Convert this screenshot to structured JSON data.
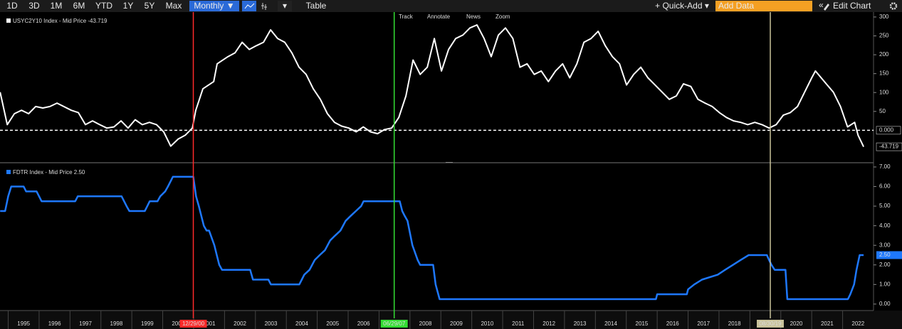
{
  "toolbar": {
    "ranges": [
      "1D",
      "3D",
      "1M",
      "6M",
      "YTD",
      "1Y",
      "5Y",
      "Max"
    ],
    "frequency": "Monthly ▼",
    "table": "Table",
    "quick_add": "+ Quick-Add ▾",
    "add_data": "Add Data",
    "collapse": "«",
    "edit_chart": "Edit Chart"
  },
  "panel_tools": [
    "Track",
    "Annotate",
    "News",
    "Zoom"
  ],
  "chart_data": [
    {
      "type": "line",
      "xlim": [
        1994.735,
        2023.0
      ],
      "ylim": [
        -84,
        313
      ],
      "yticks": [
        50,
        100,
        150,
        200,
        250,
        300
      ],
      "reference_line": {
        "value": 0,
        "label": "0.000"
      },
      "series": [
        {
          "name": "USYC2Y10 Index - Mid Price -43.719",
          "color": "#ffffff",
          "x": [
            1994.74,
            1994.97,
            1995.2,
            1995.43,
            1995.66,
            1995.89,
            1996.12,
            1996.35,
            1996.58,
            1997.04,
            1997.27,
            1997.5,
            1997.73,
            1997.96,
            1998.19,
            1998.42,
            1998.65,
            1998.88,
            1999.11,
            1999.34,
            1999.57,
            1999.8,
            2000.03,
            2000.26,
            2000.5,
            2000.73,
            2000.96,
            2001.07,
            2001.3,
            2001.65,
            2001.76,
            2002.11,
            2002.34,
            2002.57,
            2002.8,
            2003.03,
            2003.26,
            2003.49,
            2003.72,
            2003.95,
            2004.18,
            2004.41,
            2004.64,
            2004.87,
            2005.1,
            2005.33,
            2005.56,
            2005.79,
            2006.02,
            2006.26,
            2006.49,
            2006.72,
            2006.95,
            2007.18,
            2007.41,
            2007.64,
            2007.87,
            2008.1,
            2008.33,
            2008.56,
            2008.79,
            2009.02,
            2009.25,
            2009.48,
            2009.71,
            2009.94,
            2010.17,
            2010.4,
            2010.63,
            2010.86,
            2011.09,
            2011.33,
            2011.56,
            2011.79,
            2012.02,
            2012.25,
            2012.48,
            2012.71,
            2012.94,
            2013.17,
            2013.4,
            2013.63,
            2013.86,
            2014.09,
            2014.32,
            2014.55,
            2014.78,
            2015.01,
            2015.24,
            2015.47,
            2015.7,
            2015.93,
            2016.16,
            2016.39,
            2016.62,
            2016.85,
            2017.09,
            2017.32,
            2017.55,
            2017.78,
            2018.01,
            2018.24,
            2018.47,
            2018.7,
            2018.93,
            2019.16,
            2019.39,
            2019.62,
            2019.85,
            2020.08,
            2020.31,
            2020.54,
            2020.77,
            2021.0,
            2021.12,
            2021.47,
            2021.7,
            2021.93,
            2022.16,
            2022.39,
            2022.5,
            2022.68
          ],
          "values": [
            101,
            15,
            44,
            53,
            44,
            63,
            59,
            63,
            72,
            53,
            47,
            15,
            25,
            15,
            6,
            9,
            25,
            6,
            28,
            15,
            21,
            15,
            -4,
            -42,
            -23,
            -13,
            6,
            53,
            110,
            129,
            176,
            195,
            205,
            233,
            214,
            224,
            233,
            266,
            243,
            233,
            205,
            167,
            148,
            110,
            82,
            44,
            21,
            11,
            6,
            -4,
            9,
            -4,
            -9,
            2,
            6,
            34,
            91,
            186,
            148,
            167,
            243,
            157,
            214,
            243,
            252,
            271,
            279,
            243,
            195,
            252,
            271,
            243,
            167,
            176,
            148,
            157,
            129,
            157,
            176,
            139,
            176,
            233,
            243,
            262,
            224,
            195,
            176,
            120,
            148,
            167,
            139,
            120,
            101,
            82,
            91,
            123,
            116,
            82,
            72,
            63,
            47,
            34,
            25,
            21,
            15,
            21,
            15,
            6,
            15,
            40,
            47,
            63,
            101,
            139,
            157,
            123,
            101,
            63,
            9,
            21,
            -13,
            -43.719
          ]
        }
      ]
    },
    {
      "type": "line",
      "xlim": [
        1994.735,
        2023.0
      ],
      "ylim": [
        -0.33,
        7.18
      ],
      "xticks": [
        1995,
        1996,
        1997,
        1998,
        1999,
        2000,
        2001,
        2002,
        2003,
        2004,
        2005,
        2006,
        2007,
        2008,
        2009,
        2010,
        2011,
        2012,
        2013,
        2014,
        2015,
        2016,
        2017,
        2018,
        2019,
        2020,
        2021,
        2022
      ],
      "yticks": [
        {
          "value": 0,
          "label": "0.00"
        },
        {
          "value": 1,
          "label": "1.00"
        },
        {
          "value": 2,
          "label": "2.00"
        },
        {
          "value": 3,
          "label": "3.00"
        },
        {
          "value": 4,
          "label": "4.00"
        },
        {
          "value": 5,
          "label": "5.00"
        },
        {
          "value": 6,
          "label": "6.00"
        },
        {
          "value": 7,
          "label": "7.00"
        }
      ],
      "markers": [
        {
          "label": "12/29/00",
          "x": 2000.99,
          "color": "#ff2a2a"
        },
        {
          "label": "06/29/07",
          "x": 2007.49,
          "color": "#33dd33"
        },
        {
          "label": "08/30/19",
          "x": 2019.66,
          "color": "#c8c29a"
        }
      ],
      "series": [
        {
          "name": "FDTR Index - Mid Price 2.50",
          "color": "#1e78ff",
          "last_value_label": "2.50",
          "x": [
            1994.74,
            1994.9,
            1995.0,
            1995.1,
            1995.5,
            1995.58,
            1995.92,
            1996.0,
            1996.08,
            1997.17,
            1997.25,
            1998.67,
            1998.75,
            1998.83,
            1998.92,
            1999.42,
            1999.5,
            1999.58,
            1999.83,
            1999.92,
            2000.08,
            2000.17,
            2000.33,
            2000.99,
            2001.08,
            2001.17,
            2001.25,
            2001.33,
            2001.42,
            2001.5,
            2001.67,
            2001.75,
            2001.83,
            2001.92,
            2002.83,
            2002.92,
            2003.42,
            2003.5,
            2004.42,
            2004.5,
            2004.58,
            2004.75,
            2004.92,
            2005.08,
            2005.25,
            2005.42,
            2005.58,
            2005.75,
            2005.92,
            2006.08,
            2006.25,
            2006.42,
            2006.5,
            2007.67,
            2007.75,
            2007.83,
            2007.92,
            2008.08,
            2008.25,
            2008.33,
            2008.75,
            2008.83,
            2008.96,
            2015.96,
            2016.0,
            2016.96,
            2017.0,
            2017.2,
            2017.45,
            2017.96,
            2018.2,
            2018.45,
            2018.7,
            2018.96,
            2019.55,
            2019.62,
            2019.7,
            2019.8,
            2020.15,
            2020.21,
            2022.17,
            2022.25,
            2022.37,
            2022.45,
            2022.55,
            2022.68
          ],
          "values": [
            4.75,
            4.75,
            5.5,
            6.0,
            6.0,
            5.75,
            5.75,
            5.5,
            5.25,
            5.25,
            5.5,
            5.5,
            5.25,
            5.0,
            4.75,
            4.75,
            5.0,
            5.25,
            5.25,
            5.5,
            5.75,
            6.0,
            6.5,
            6.5,
            5.5,
            5.0,
            4.5,
            4.0,
            3.75,
            3.75,
            3.0,
            2.5,
            2.0,
            1.75,
            1.75,
            1.25,
            1.25,
            1.0,
            1.0,
            1.25,
            1.5,
            1.75,
            2.25,
            2.5,
            2.75,
            3.25,
            3.5,
            3.75,
            4.25,
            4.5,
            4.75,
            5.0,
            5.25,
            5.25,
            4.75,
            4.5,
            4.25,
            3.0,
            2.25,
            2.0,
            2.0,
            1.0,
            0.25,
            0.25,
            0.5,
            0.5,
            0.75,
            1.0,
            1.25,
            1.5,
            1.75,
            2.0,
            2.25,
            2.5,
            2.5,
            2.25,
            2.0,
            1.75,
            1.75,
            0.25,
            0.25,
            0.5,
            1.0,
            1.75,
            2.5,
            2.5
          ]
        }
      ]
    }
  ]
}
